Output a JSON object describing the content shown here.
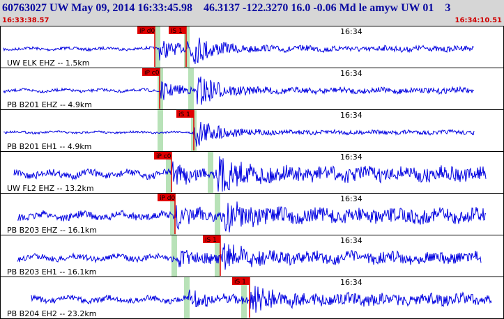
{
  "header": {
    "title": "60763027 UW May 09, 2014 16:33:45.98    46.3137 -122.3270 16.0 -0.06 Md le amyw UW 01    3",
    "start_time": "16:33:38.57",
    "end_time": "16:34:10.51"
  },
  "panels": [
    {
      "label": "UW ELK EHZ -- 1.5km",
      "time_label": "16:34",
      "picks": [
        "iP d0",
        "iS 1"
      ]
    },
    {
      "label": "PB B201 EHZ -- 4.9km",
      "time_label": "16:34",
      "picks": [
        "iP c0"
      ]
    },
    {
      "label": "PB B201 EH1 -- 4.9km",
      "time_label": "16:34",
      "picks": [
        "iS 1"
      ]
    },
    {
      "label": "UW FL2 EHZ -- 13.2km",
      "time_label": "16:34",
      "picks": [
        "iP c0"
      ]
    },
    {
      "label": "PB B203 EHZ -- 16.1km",
      "time_label": "16:34",
      "picks": [
        "iP d0"
      ]
    },
    {
      "label": "PB B203 EH1 -- 16.1km",
      "time_label": "16:34",
      "picks": [
        "iS 1"
      ]
    },
    {
      "label": "PB B204 EH2 -- 23.2km",
      "time_label": "16:34",
      "picks": [
        "iS 1"
      ]
    }
  ]
}
